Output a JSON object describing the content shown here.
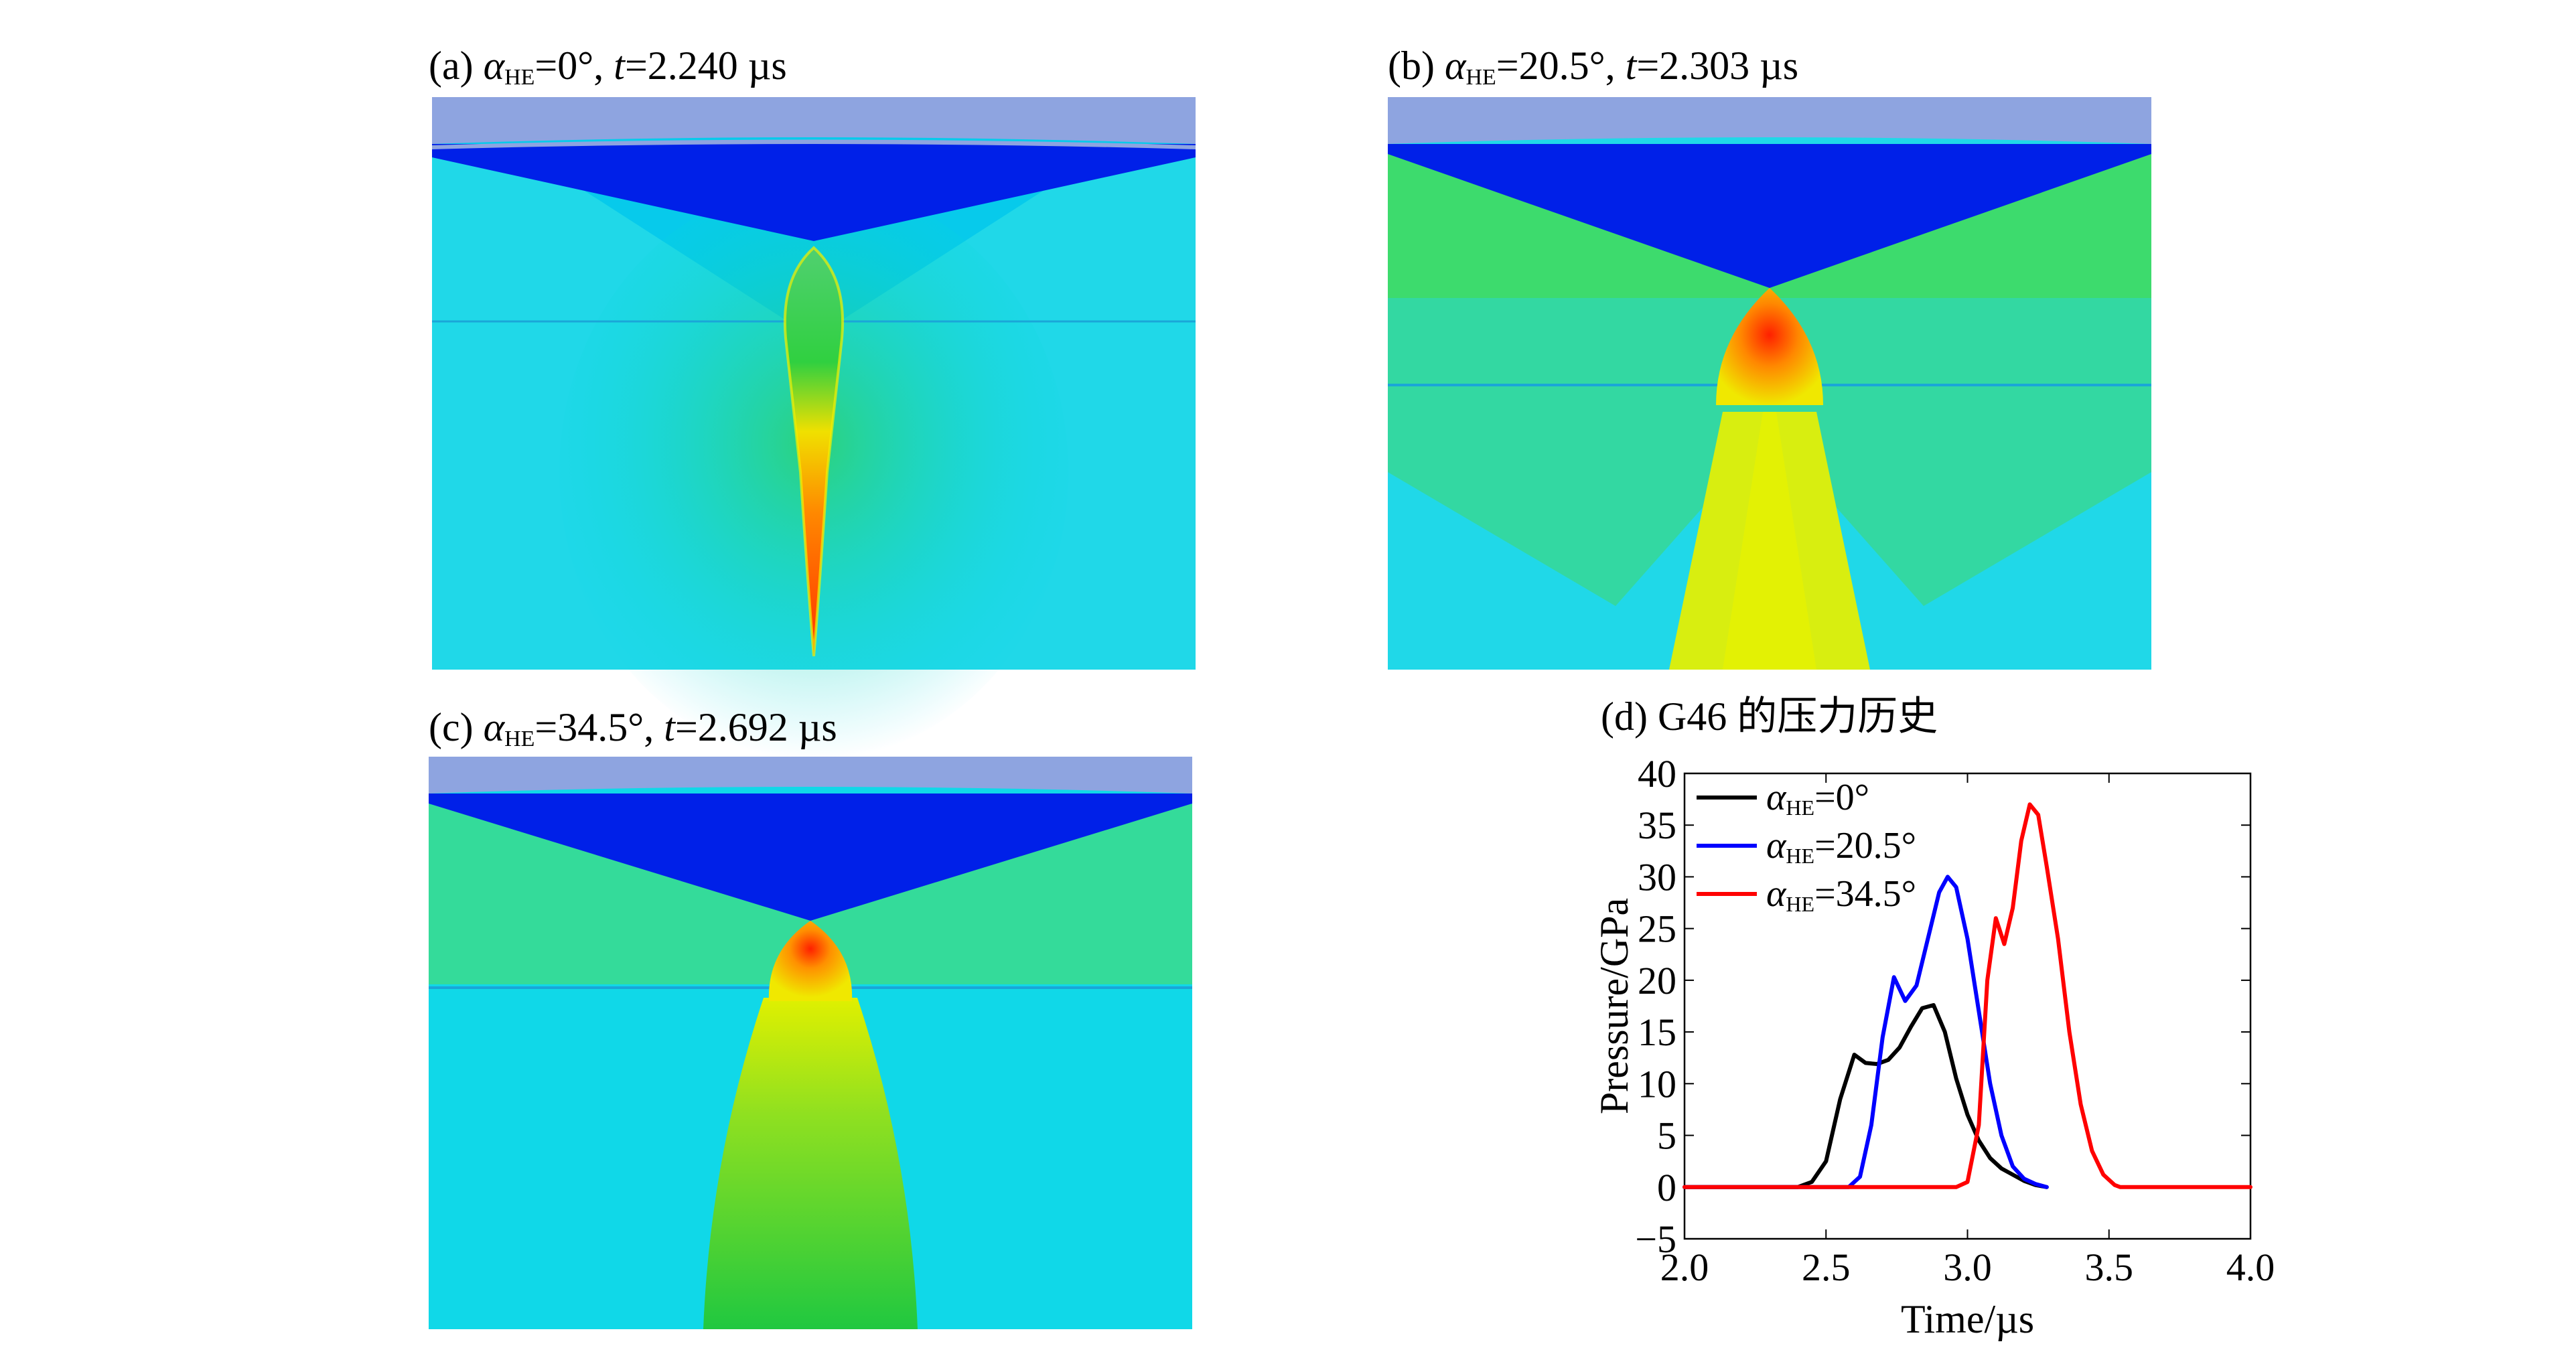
{
  "panels": [
    {
      "prefix": "(a) ",
      "alpha_sym": "α",
      "sub": "HE",
      "angle": "=0°",
      "sep": ", ",
      "t_sym": "t",
      "time": "=2.240 µs"
    },
    {
      "prefix": "(b) ",
      "alpha_sym": "α",
      "sub": "HE",
      "angle": "=20.5°",
      "sep": ", ",
      "t_sym": "t",
      "time": "=2.303 µs"
    },
    {
      "prefix": "(c) ",
      "alpha_sym": "α",
      "sub": "HE",
      "angle": "=34.5°",
      "sep": ", ",
      "t_sym": "t",
      "time": "=2.692 µs"
    }
  ],
  "chart_title": "(d) G46 的压力历史",
  "colors": {
    "liner": "#8ea4e0",
    "explosive": "#0020e8",
    "cyan": "#00d8ec",
    "green": "#10c838",
    "yellow": "#e0f000",
    "red": "#ff2000",
    "series_0": "#000000",
    "series_20": "#0000ff",
    "series_34": "#ff0000"
  },
  "chart_data": {
    "type": "line",
    "title": "(d) G46 的压力历史",
    "xlabel": "Time/µs",
    "ylabel": "Pressure/GPa",
    "xlim": [
      2.0,
      4.0
    ],
    "ylim": [
      -5,
      40
    ],
    "xticks": [
      "2.0",
      "2.5",
      "3.0",
      "3.5",
      "4.0"
    ],
    "yticks": [
      "−5",
      "0",
      "5",
      "10",
      "15",
      "20",
      "25",
      "30",
      "35",
      "40"
    ],
    "legend_position": "top-left",
    "series": [
      {
        "name": "α_HE=0°",
        "name_sym": "α",
        "name_sub": "HE",
        "name_rest": "=0°",
        "color": "#000000",
        "x": [
          2.0,
          2.4,
          2.45,
          2.5,
          2.55,
          2.6,
          2.64,
          2.68,
          2.72,
          2.76,
          2.8,
          2.84,
          2.88,
          2.92,
          2.96,
          3.0,
          3.04,
          3.08,
          3.12,
          3.16,
          3.2,
          3.24,
          3.28
        ],
        "y": [
          0,
          0,
          0.5,
          2.5,
          8.5,
          12.8,
          12.0,
          11.9,
          12.3,
          13.5,
          15.5,
          17.3,
          17.6,
          15.0,
          10.5,
          7.0,
          4.5,
          2.8,
          1.8,
          1.2,
          0.6,
          0.2,
          0
        ]
      },
      {
        "name": "α_HE=20.5°",
        "name_sym": "α",
        "name_sub": "HE",
        "name_rest": "=20.5°",
        "color": "#0000ff",
        "x": [
          2.0,
          2.58,
          2.62,
          2.66,
          2.7,
          2.74,
          2.78,
          2.82,
          2.86,
          2.9,
          2.93,
          2.96,
          3.0,
          3.04,
          3.08,
          3.12,
          3.16,
          3.2,
          3.24,
          3.28
        ],
        "y": [
          0,
          0,
          1.0,
          6.0,
          14.5,
          20.3,
          18.0,
          19.5,
          24.0,
          28.5,
          30.0,
          29.0,
          24.0,
          17.0,
          10.0,
          5.0,
          2.0,
          0.8,
          0.3,
          0
        ]
      },
      {
        "name": "α_HE=34.5°",
        "name_sym": "α",
        "name_sub": "HE",
        "name_rest": "=34.5°",
        "color": "#ff0000",
        "x": [
          2.0,
          2.96,
          3.0,
          3.04,
          3.07,
          3.1,
          3.13,
          3.16,
          3.19,
          3.22,
          3.25,
          3.28,
          3.32,
          3.36,
          3.4,
          3.44,
          3.48,
          3.52,
          3.54,
          4.0
        ],
        "y": [
          0,
          0,
          0.5,
          6.0,
          20.0,
          26.0,
          23.5,
          27.0,
          33.5,
          37.0,
          36.0,
          31.0,
          24.0,
          15.0,
          8.0,
          3.5,
          1.2,
          0.2,
          0,
          0
        ]
      }
    ]
  }
}
